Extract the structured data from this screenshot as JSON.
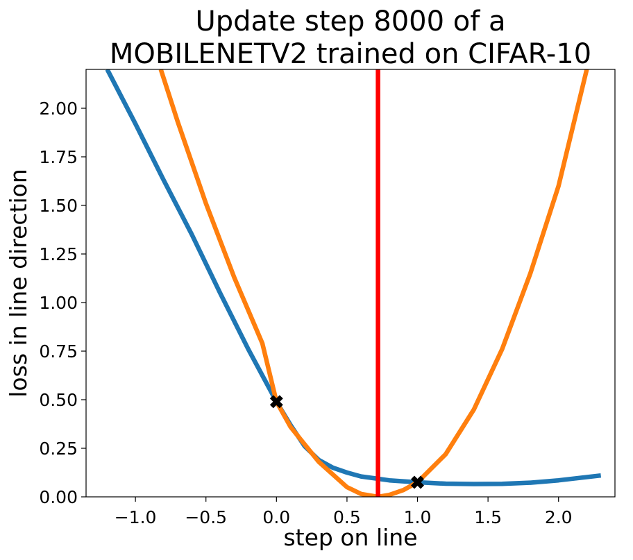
{
  "chart_data": {
    "type": "line",
    "title_lines": [
      "Update step 8000 of a",
      "MOBILENETV2 trained on CIFAR-10"
    ],
    "xlabel": "step on line",
    "ylabel": "loss in line direction",
    "xlim": [
      -1.35,
      2.4
    ],
    "ylim": [
      0.0,
      2.2
    ],
    "xticks": [
      -1.0,
      -0.5,
      0.0,
      0.5,
      1.0,
      1.5,
      2.0
    ],
    "xtick_labels": [
      "−1.0",
      "−0.5",
      "0.0",
      "0.5",
      "1.0",
      "1.5",
      "2.0"
    ],
    "yticks": [
      0.0,
      0.25,
      0.5,
      0.75,
      1.0,
      1.25,
      1.5,
      1.75,
      2.0
    ],
    "ytick_labels": [
      "0.00",
      "0.25",
      "0.50",
      "0.75",
      "1.00",
      "1.25",
      "1.50",
      "1.75",
      "2.00"
    ],
    "grid": false,
    "series": [
      {
        "color": "#1f77b4",
        "x": [
          -1.2,
          -1.0,
          -0.8,
          -0.6,
          -0.4,
          -0.2,
          0.0,
          0.1,
          0.2,
          0.3,
          0.4,
          0.5,
          0.6,
          0.7,
          0.8,
          1.0,
          1.2,
          1.4,
          1.6,
          1.8,
          2.0,
          2.3
        ],
        "y": [
          2.2,
          1.92,
          1.63,
          1.35,
          1.05,
          0.76,
          0.49,
          0.37,
          0.26,
          0.19,
          0.15,
          0.125,
          0.105,
          0.095,
          0.085,
          0.075,
          0.068,
          0.066,
          0.067,
          0.073,
          0.085,
          0.11
        ]
      },
      {
        "color": "#ff7f0e",
        "x": [
          -0.82,
          -0.7,
          -0.5,
          -0.3,
          -0.1,
          0.0,
          0.1,
          0.3,
          0.5,
          0.6,
          0.72,
          0.8,
          0.9,
          1.0,
          1.2,
          1.4,
          1.6,
          1.8,
          2.0,
          2.2
        ],
        "y": [
          2.2,
          1.93,
          1.51,
          1.13,
          0.79,
          0.49,
          0.36,
          0.18,
          0.05,
          0.015,
          0.0,
          0.01,
          0.035,
          0.075,
          0.22,
          0.45,
          0.76,
          1.15,
          1.6,
          2.2
        ]
      }
    ],
    "markers": [
      {
        "x": 0.0,
        "y": 0.49,
        "symbol": "X",
        "color": "#000000"
      },
      {
        "x": 1.0,
        "y": 0.075,
        "symbol": "X",
        "color": "#000000"
      }
    ],
    "vline": {
      "x": 0.72,
      "color": "#ff0000"
    }
  }
}
